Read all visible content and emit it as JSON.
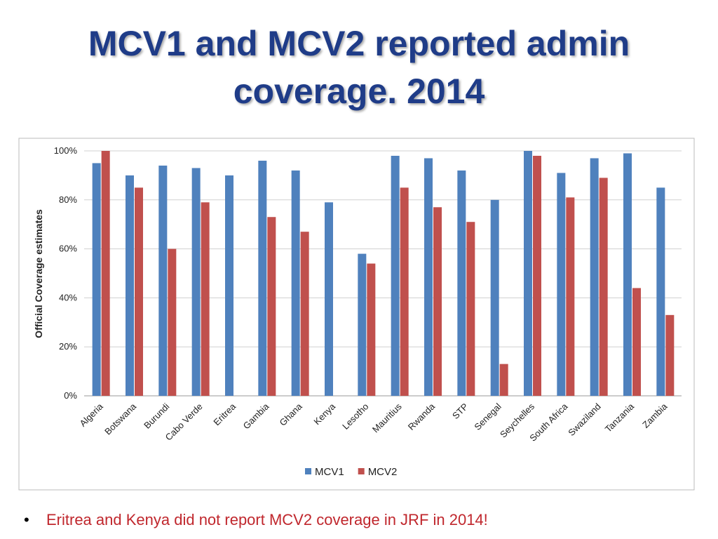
{
  "chart_data": {
    "type": "bar",
    "title": "MCV1 and MCV2 reported admin coverage. 2014",
    "y_label": "Official Coverage  estimates",
    "categories": [
      "Algeria",
      "Botswana",
      "Burundi",
      "Cabo Verde",
      "Eritrea",
      "Gambia",
      "Ghana",
      "Kenya",
      "Lesotho",
      "Mauritius",
      "Rwanda",
      "STP",
      "Senegal",
      "Seychelles",
      "South Africa",
      "Swaziland",
      "Tanzania",
      "Zambia"
    ],
    "series": [
      {
        "name": "MCV1",
        "color": "#4f81bd",
        "values": [
          95,
          90,
          94,
          93,
          90,
          96,
          92,
          79,
          58,
          98,
          97,
          92,
          80,
          100,
          91,
          97,
          99,
          85
        ]
      },
      {
        "name": "MCV2",
        "color": "#c0504d",
        "values": [
          100,
          85,
          60,
          79,
          null,
          73,
          67,
          null,
          54,
          85,
          77,
          71,
          13,
          98,
          81,
          89,
          44,
          33
        ]
      }
    ],
    "ylim": [
      0,
      100
    ],
    "yticks": [
      {
        "value": 0,
        "label": "0%"
      },
      {
        "value": 20,
        "label": "20%"
      },
      {
        "value": 40,
        "label": "40%"
      },
      {
        "value": 60,
        "label": "60%"
      },
      {
        "value": 80,
        "label": "80%"
      },
      {
        "value": 100,
        "label": "100%"
      }
    ],
    "grid": true,
    "legend": "bottom",
    "note": "Eritrea and Kenya did not report MCV2 coverage in JRF in 2014!"
  }
}
